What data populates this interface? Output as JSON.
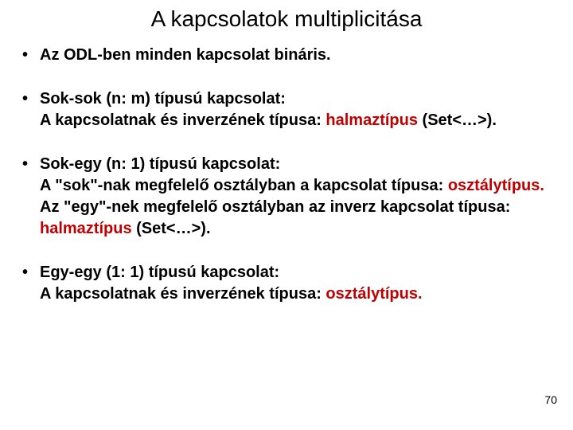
{
  "title": "A kapcsolatok multiplicitása",
  "bullets": [
    {
      "lead": "Az ODL-ben minden kapcsolat bináris."
    },
    {
      "lead": "Sok-sok (n: m) típusú kapcsolat:",
      "line1_a": "A kapcsolatnak és inverzének típusa: ",
      "line1_red": "halmaztípus",
      "line1_b": " (Set<…>)."
    },
    {
      "lead": "Sok-egy (n: 1) típusú kapcsolat:",
      "line1_a": "A \"sok\"-nak megfelelő osztályban a kapcsolat típusa: ",
      "line1_red": "osztálytípus.",
      "line2_a": "Az \"egy\"-nek megfelelő osztályban az inverz kapcsolat típusa: ",
      "line2_red": "halmaztípus",
      "line2_b": " (Set<…>)."
    },
    {
      "lead": "Egy-egy (1: 1) típusú kapcsolat:",
      "line1_a": "A kapcsolatnak és inverzének típusa: ",
      "line1_red": "osztálytípus."
    }
  ],
  "page_number": "70",
  "colors": {
    "text": "#000000",
    "emphasis": "#c00000",
    "background": "#ffffff"
  },
  "typography": {
    "title_fontsize": 28,
    "body_fontsize": 20,
    "body_weight": "bold",
    "font_family": "Arial"
  }
}
